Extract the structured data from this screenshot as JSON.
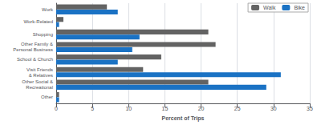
{
  "chart_data": {
    "type": "bar",
    "orientation": "horizontal",
    "categories": [
      "Work",
      "Work-Related",
      "Shopping",
      "Other Family &\nPersonal Business",
      "School & Church",
      "Visit Friends\n& Relatives",
      "Other Social &\nRecreational",
      "Other"
    ],
    "series": [
      {
        "name": "Walk",
        "color": "#636363",
        "values": [
          7.0,
          1.0,
          21.0,
          22.0,
          14.5,
          12.0,
          21.0,
          0.4
        ]
      },
      {
        "name": "Bike",
        "color": "#1a72c4",
        "values": [
          8.5,
          0.4,
          11.5,
          10.5,
          8.5,
          31.0,
          29.0,
          0.4
        ]
      }
    ],
    "xlabel": "Percent of Trips",
    "xlim": [
      0,
      35
    ],
    "xticks": [
      0,
      5,
      10,
      15,
      20,
      25,
      30,
      35
    ],
    "grid": true,
    "legend": "upper right"
  }
}
